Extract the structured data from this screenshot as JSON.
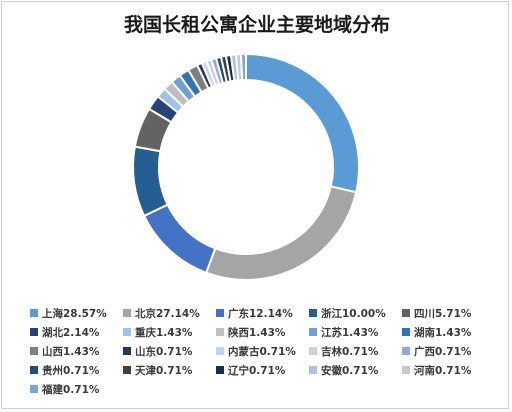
{
  "chart_data": {
    "type": "pie",
    "style": "donut",
    "title": "我国长租公寓企业主要地域分布",
    "legend_position": "bottom",
    "labels": [
      "上海",
      "北京",
      "广东",
      "浙江",
      "四川",
      "湖北",
      "重庆",
      "陕西",
      "江苏",
      "湖南",
      "山西",
      "山东",
      "内蒙古",
      "吉林",
      "广西",
      "贵州",
      "天津",
      "辽宁",
      "安徽",
      "河南",
      "福建"
    ],
    "values": [
      28.57,
      27.14,
      12.14,
      10.0,
      5.71,
      2.14,
      1.43,
      1.43,
      1.43,
      1.43,
      1.43,
      0.71,
      0.71,
      0.71,
      0.71,
      0.71,
      0.71,
      0.71,
      0.71,
      0.71,
      0.71
    ],
    "legend_entries": [
      "上海28.57%",
      "北京27.14%",
      "广东12.14%",
      "浙江10.00%",
      "四川5.71%",
      "湖北2.14%",
      "重庆1.43%",
      "陕西1.43%",
      "江苏1.43%",
      "湖南1.43%",
      "山西1.43%",
      "山东0.71%",
      "内蒙古0.71%",
      "吉林0.71%",
      "广西0.71%",
      "贵州0.71%",
      "天津0.71%",
      "辽宁0.71%",
      "安徽0.71%",
      "河南0.71%",
      "福建0.71%"
    ],
    "colors": [
      "#5b9bd5",
      "#a5a5a5",
      "#4472c4",
      "#255e91",
      "#636363",
      "#264478",
      "#9dc3e6",
      "#bfbfbf",
      "#6f9fd8",
      "#2e75b6",
      "#7f7f7f",
      "#203864",
      "#bdd7ee",
      "#d0d0d0",
      "#8faadc",
      "#1f4e79",
      "#404040",
      "#172c51",
      "#a9c4e8",
      "#c9c9c9",
      "#7ea6d8"
    ]
  }
}
